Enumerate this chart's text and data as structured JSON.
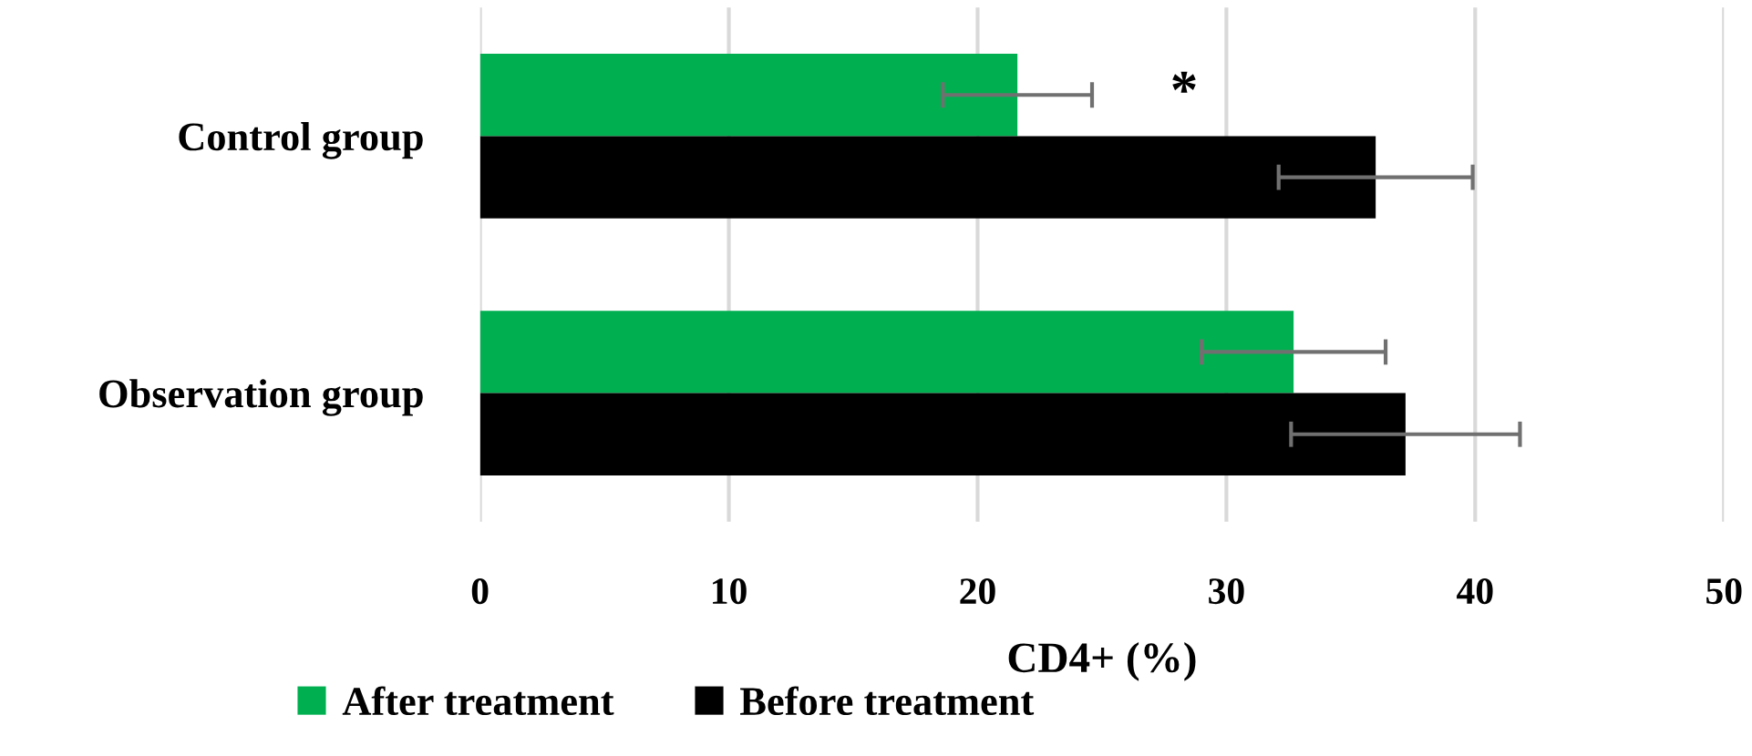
{
  "chart_data": {
    "type": "bar",
    "orientation": "horizontal",
    "xlabel": "CD4+ (%)",
    "categories": [
      "Control group",
      "Observation group"
    ],
    "series": [
      {
        "name": "After treatment",
        "color": "#00b050",
        "values": [
          21.6,
          32.7
        ],
        "errors": [
          3.0,
          3.7
        ]
      },
      {
        "name": "Before treatment",
        "color": "#000000",
        "values": [
          36.0,
          37.2
        ],
        "errors": [
          3.9,
          4.6
        ]
      }
    ],
    "xlim": [
      0,
      50
    ],
    "xticks": [
      0,
      10,
      20,
      30,
      40,
      50
    ],
    "grid": "x",
    "legend": "bottom",
    "annotations": [
      {
        "text": "*",
        "x": 28.3,
        "y": "Control group"
      }
    ]
  }
}
